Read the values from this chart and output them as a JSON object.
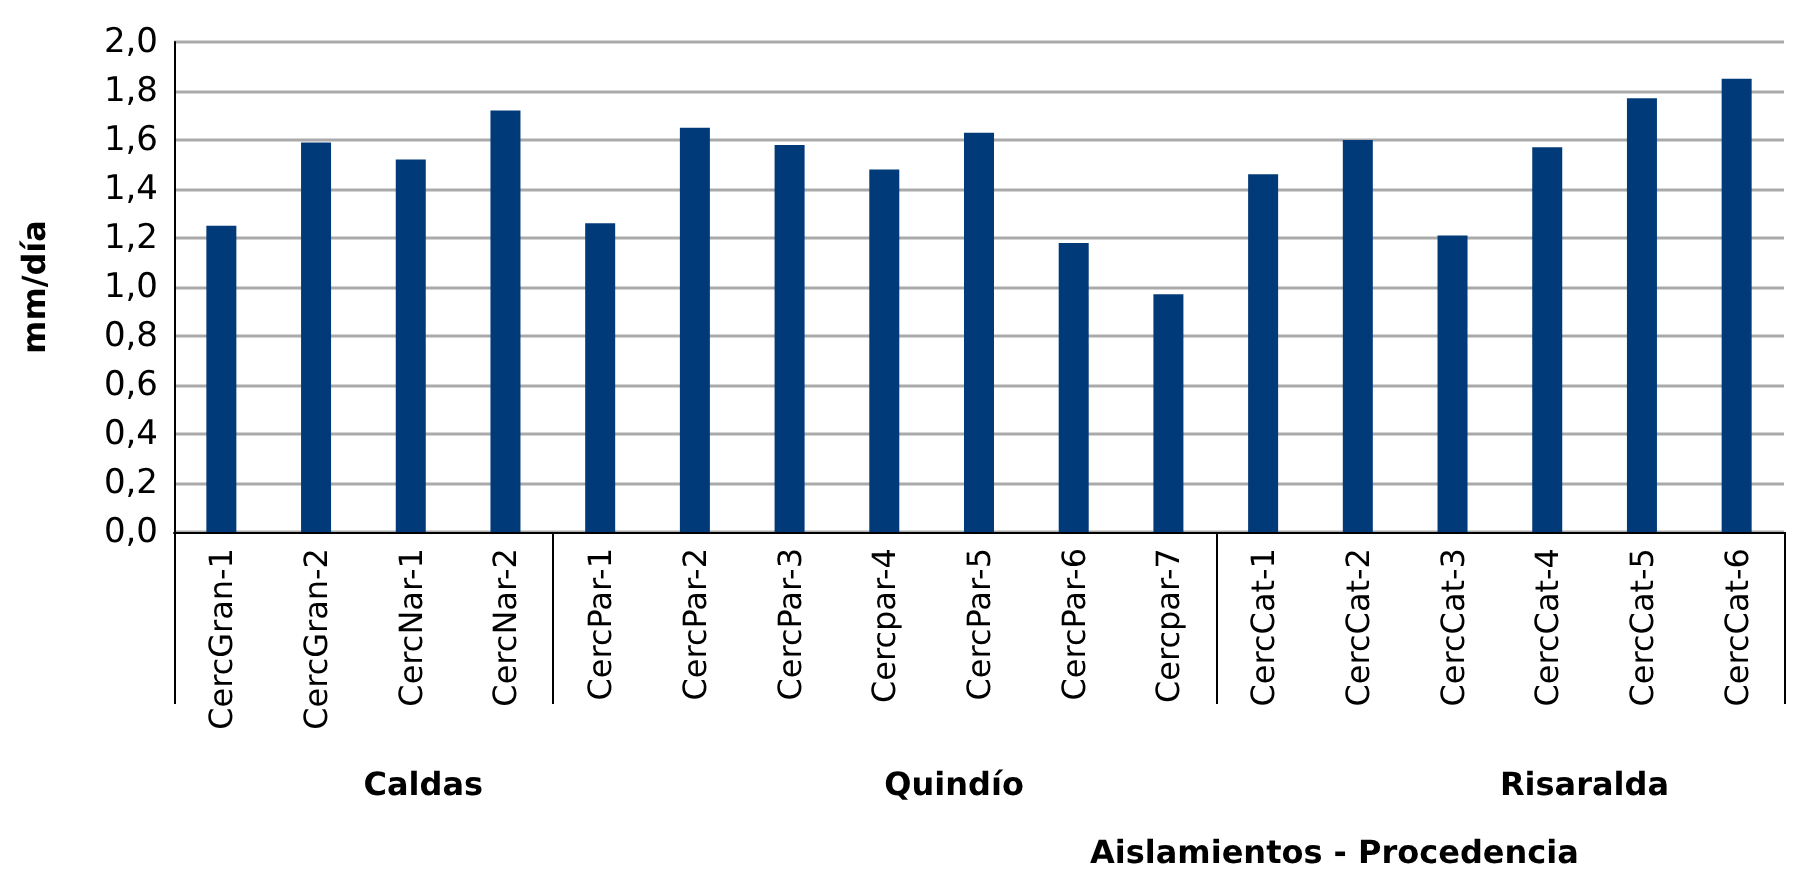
{
  "chart_data": {
    "type": "bar",
    "xlabel": "Aislamientos - Procedencia",
    "ylabel": "mm/día",
    "categories": [
      "CercGran-1",
      "CercGran-2",
      "CercNar-1",
      "CercNar-2",
      "CercPar-1",
      "CercPar-2",
      "CercPar-3",
      "Cercpar-4",
      "CercPar-5",
      "CercPar-6",
      "Cercpar-7",
      "CercCat-1",
      "CercCat-2",
      "CercCat-3",
      "CercCat-4",
      "CercCat-5",
      "CercCat-6"
    ],
    "values": [
      1.25,
      1.59,
      1.52,
      1.72,
      1.26,
      1.65,
      1.58,
      1.48,
      1.63,
      1.18,
      0.97,
      1.46,
      1.6,
      1.21,
      1.57,
      1.77,
      1.85
    ],
    "color": "#003a78",
    "ylim": [
      0,
      2
    ],
    "yticks": [
      {
        "value": 0,
        "label": "0,0"
      },
      {
        "value": 0.2,
        "label": "0,2"
      },
      {
        "value": 0.4,
        "label": "0,4"
      },
      {
        "value": 0.6,
        "label": "0,6"
      },
      {
        "value": 0.8,
        "label": "0,8"
      },
      {
        "value": 1.0,
        "label": "1,0"
      },
      {
        "value": 1.2,
        "label": "1,2"
      },
      {
        "value": 1.4,
        "label": "1,4"
      },
      {
        "value": 1.6,
        "label": "1,6"
      },
      {
        "value": 1.8,
        "label": "1,8"
      },
      {
        "value": 2.0,
        "label": "2,0"
      }
    ],
    "grid": "y",
    "annotations": [
      "Caldas",
      "Quindío",
      "Risaralda"
    ]
  }
}
